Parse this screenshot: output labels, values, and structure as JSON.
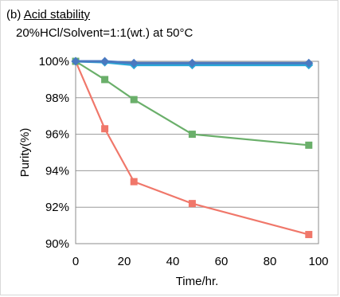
{
  "panel": {
    "label": "(b)",
    "title": "Acid stability",
    "subtitle": "20%HCl/Solvent=1:1(wt.) at 50°C"
  },
  "chart_data": {
    "type": "line",
    "xlabel": "Time/hr.",
    "ylabel": "Purity(%)",
    "xlim": [
      0,
      100
    ],
    "ylim": [
      90,
      100
    ],
    "xticks": [
      0,
      20,
      40,
      60,
      80,
      100
    ],
    "yticks": [
      90,
      92,
      94,
      96,
      98,
      100
    ],
    "ytick_labels": [
      "90%",
      "92%",
      "94%",
      "96%",
      "98%",
      "100%"
    ],
    "grid": "horizontal",
    "series": [
      {
        "color": "#f0776a",
        "marker": "square",
        "x": [
          0,
          12,
          24,
          48,
          96
        ],
        "y": [
          100,
          96.3,
          93.4,
          92.2,
          90.5
        ]
      },
      {
        "color": "#6aaf6a",
        "marker": "square",
        "x": [
          0,
          12,
          24,
          48,
          96
        ],
        "y": [
          100,
          99.0,
          97.9,
          96.0,
          95.4
        ]
      },
      {
        "color": "#2aa7d6",
        "marker": "diamond",
        "x": [
          0,
          12,
          24,
          48,
          96
        ],
        "y": [
          100,
          99.95,
          99.8,
          99.8,
          99.8
        ]
      },
      {
        "color": "#4a79c0",
        "marker": "diamond",
        "x": [
          0,
          12,
          24,
          48,
          96
        ],
        "y": [
          100,
          100,
          99.9,
          99.9,
          99.9
        ]
      }
    ]
  }
}
